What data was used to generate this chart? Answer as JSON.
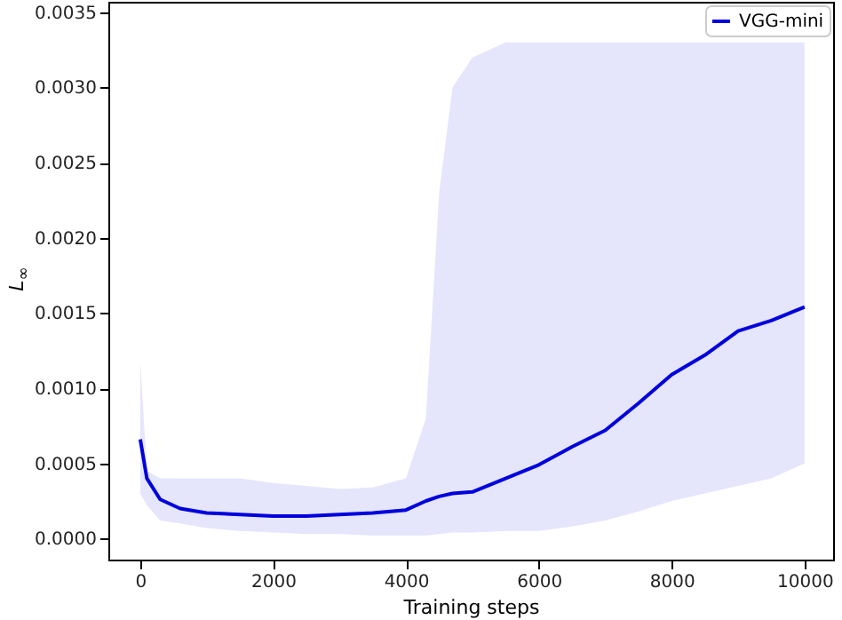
{
  "chart_data": {
    "type": "line",
    "xlabel": "Training steps",
    "ylabel": "L$_{∞}$",
    "x": [
      0,
      100,
      300,
      600,
      1000,
      1500,
      2000,
      2500,
      3000,
      3500,
      4000,
      4300,
      4500,
      4700,
      5000,
      5500,
      6000,
      6500,
      7000,
      7500,
      8000,
      8500,
      9000,
      9500,
      10000
    ],
    "series": [
      {
        "name": "VGG-mini",
        "color": "#0000dd",
        "values": [
          0.00066,
          0.0004,
          0.00026,
          0.0002,
          0.00017,
          0.00016,
          0.00015,
          0.00015,
          0.00016,
          0.00017,
          0.00019,
          0.00025,
          0.00028,
          0.0003,
          0.00031,
          0.0004,
          0.00049,
          0.00061,
          0.00072,
          0.0009,
          0.00109,
          0.00122,
          0.00138,
          0.00145,
          0.00154
        ],
        "lower": [
          0.0003,
          0.00022,
          0.00012,
          0.0001,
          7e-05,
          5e-05,
          4e-05,
          3e-05,
          3e-05,
          2e-05,
          2e-05,
          2e-05,
          3e-05,
          4e-05,
          4e-05,
          5e-05,
          5e-05,
          8e-05,
          0.00012,
          0.00018,
          0.00025,
          0.0003,
          0.00035,
          0.0004,
          0.0005
        ],
        "upper": [
          0.00118,
          0.00045,
          0.0004,
          0.0004,
          0.0004,
          0.0004,
          0.00037,
          0.00035,
          0.00033,
          0.00034,
          0.0004,
          0.0008,
          0.0023,
          0.003,
          0.0032,
          0.0033,
          0.0033,
          0.0033,
          0.0033,
          0.0033,
          0.0033,
          0.0033,
          0.0033,
          0.0033,
          0.0033
        ]
      }
    ],
    "xlim": [
      -480,
      10430
    ],
    "xticks": [
      0,
      2000,
      4000,
      6000,
      8000,
      10000
    ],
    "ylim": [
      -0.00014,
      0.00357
    ],
    "yticks": [
      {
        "value": 0,
        "label": "0.0000"
      },
      {
        "value": 0.0005,
        "label": "0.0005"
      },
      {
        "value": 0.001,
        "label": "0.0010"
      },
      {
        "value": 0.0015,
        "label": "0.0015"
      },
      {
        "value": 0.002,
        "label": "0.0020"
      },
      {
        "value": 0.0025,
        "label": "0.0025"
      },
      {
        "value": 0.003,
        "label": "0.0030"
      },
      {
        "value": 0.0035,
        "label": "0.0035"
      }
    ],
    "legend": "top right",
    "line_style": "solid",
    "grid": false
  }
}
